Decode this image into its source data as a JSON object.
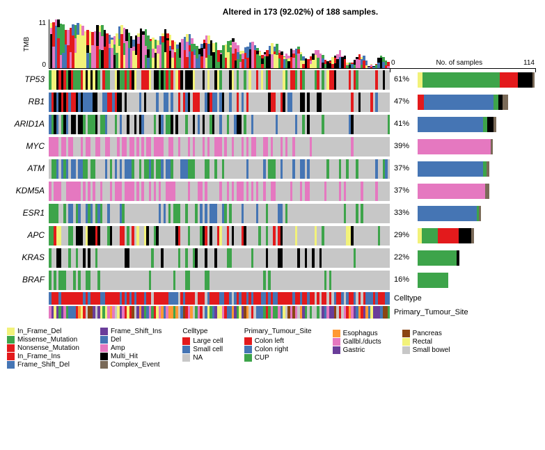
{
  "title": "Altered in 173 (92.02%) of 188 samples.",
  "tmb": {
    "ylabel": "TMB",
    "ymax": 11,
    "ymin": 0,
    "n_samples": 140
  },
  "samples_axis": {
    "label": "No. of samples",
    "min": 0,
    "max": 114
  },
  "mutation_colors": {
    "In_Frame_Del": "#f2f27a",
    "Missense_Mutation": "#3da44a",
    "Nonsense_Mutation": "#e31a1c",
    "In_Frame_Ins": "#e31a1c",
    "Frame_Shift_Del": "#4575b4",
    "Frame_Shift_Ins": "#6a3d9a",
    "Del": "#4575b4",
    "Amp": "#e578c0",
    "Multi_Hit": "#000000",
    "Complex_Event": "#7a6a58",
    "NA": "#c7c7c7"
  },
  "celltype_colors": {
    "Large cell": "#e31a1c",
    "Small cell": "#4575b4",
    "NA": "#c7c7c7"
  },
  "primary_site_colors": {
    "Colon left": "#e31a1c",
    "Colon right": "#4575b4",
    "CUP": "#3da44a",
    "Esophagus": "#ff9933",
    "Gallbl./ducts": "#e578c0",
    "Gastric": "#6a3d9a",
    "Pancreas": "#8b4513",
    "Rectal": "#f2f27a",
    "Small bowel": "#c7c7c7"
  },
  "genes": [
    {
      "name": "TP53",
      "pct": "61%",
      "bar": [
        [
          "In_Frame_Del",
          5
        ],
        [
          "Missense_Mutation",
          75
        ],
        [
          "Nonsense_Mutation",
          18
        ],
        [
          "Multi_Hit",
          14
        ],
        [
          "Complex_Event",
          2
        ]
      ]
    },
    {
      "name": "RB1",
      "pct": "47%",
      "bar": [
        [
          "Nonsense_Mutation",
          6
        ],
        [
          "Del",
          68
        ],
        [
          "Missense_Mutation",
          5
        ],
        [
          "Multi_Hit",
          4
        ],
        [
          "Complex_Event",
          5
        ]
      ]
    },
    {
      "name": "ARID1A",
      "pct": "41%",
      "bar": [
        [
          "Del",
          64
        ],
        [
          "Missense_Mutation",
          4
        ],
        [
          "Multi_Hit",
          6
        ],
        [
          "Complex_Event",
          3
        ]
      ]
    },
    {
      "name": "MYC",
      "pct": "39%",
      "bar": [
        [
          "Amp",
          71
        ],
        [
          "Complex_Event",
          2
        ]
      ]
    },
    {
      "name": "ATM",
      "pct": "37%",
      "bar": [
        [
          "Del",
          64
        ],
        [
          "Missense_Mutation",
          3
        ],
        [
          "Complex_Event",
          3
        ]
      ]
    },
    {
      "name": "KDM5A",
      "pct": "37%",
      "bar": [
        [
          "Amp",
          66
        ],
        [
          "Complex_Event",
          4
        ]
      ]
    },
    {
      "name": "ESR1",
      "pct": "33%",
      "bar": [
        [
          "Del",
          58
        ],
        [
          "Missense_Mutation",
          2
        ],
        [
          "Complex_Event",
          2
        ]
      ]
    },
    {
      "name": "APC",
      "pct": "29%",
      "bar": [
        [
          "In_Frame_Del",
          4
        ],
        [
          "Missense_Mutation",
          16
        ],
        [
          "Nonsense_Mutation",
          20
        ],
        [
          "Multi_Hit",
          12
        ],
        [
          "Complex_Event",
          3
        ]
      ]
    },
    {
      "name": "KRAS",
      "pct": "22%",
      "bar": [
        [
          "Missense_Mutation",
          38
        ],
        [
          "Multi_Hit",
          3
        ]
      ]
    },
    {
      "name": "BRAF",
      "pct": "16%",
      "bar": [
        [
          "Missense_Mutation",
          30
        ]
      ]
    }
  ],
  "tracks": [
    {
      "name": "Celltype"
    },
    {
      "name": "Primary_Tumour_Site"
    }
  ],
  "legend_mutation_col1": [
    "In_Frame_Del",
    "Missense_Mutation",
    "Nonsense_Mutation",
    "In_Frame_Ins",
    "Frame_Shift_Del"
  ],
  "legend_mutation_col2": [
    "Frame_Shift_Ins",
    "Del",
    "Amp",
    "Multi_Hit",
    "Complex_Event"
  ],
  "legend_celltype": [
    "Large cell",
    "Small cell",
    "NA"
  ],
  "legend_primary_col1": [
    "Colon left",
    "Colon right",
    "CUP"
  ],
  "legend_primary_col2": [
    "Esophagus",
    "Gallbl./ducts",
    "Gastric"
  ],
  "legend_primary_col3": [
    "Pancreas",
    "Rectal",
    "Small bowel"
  ]
}
